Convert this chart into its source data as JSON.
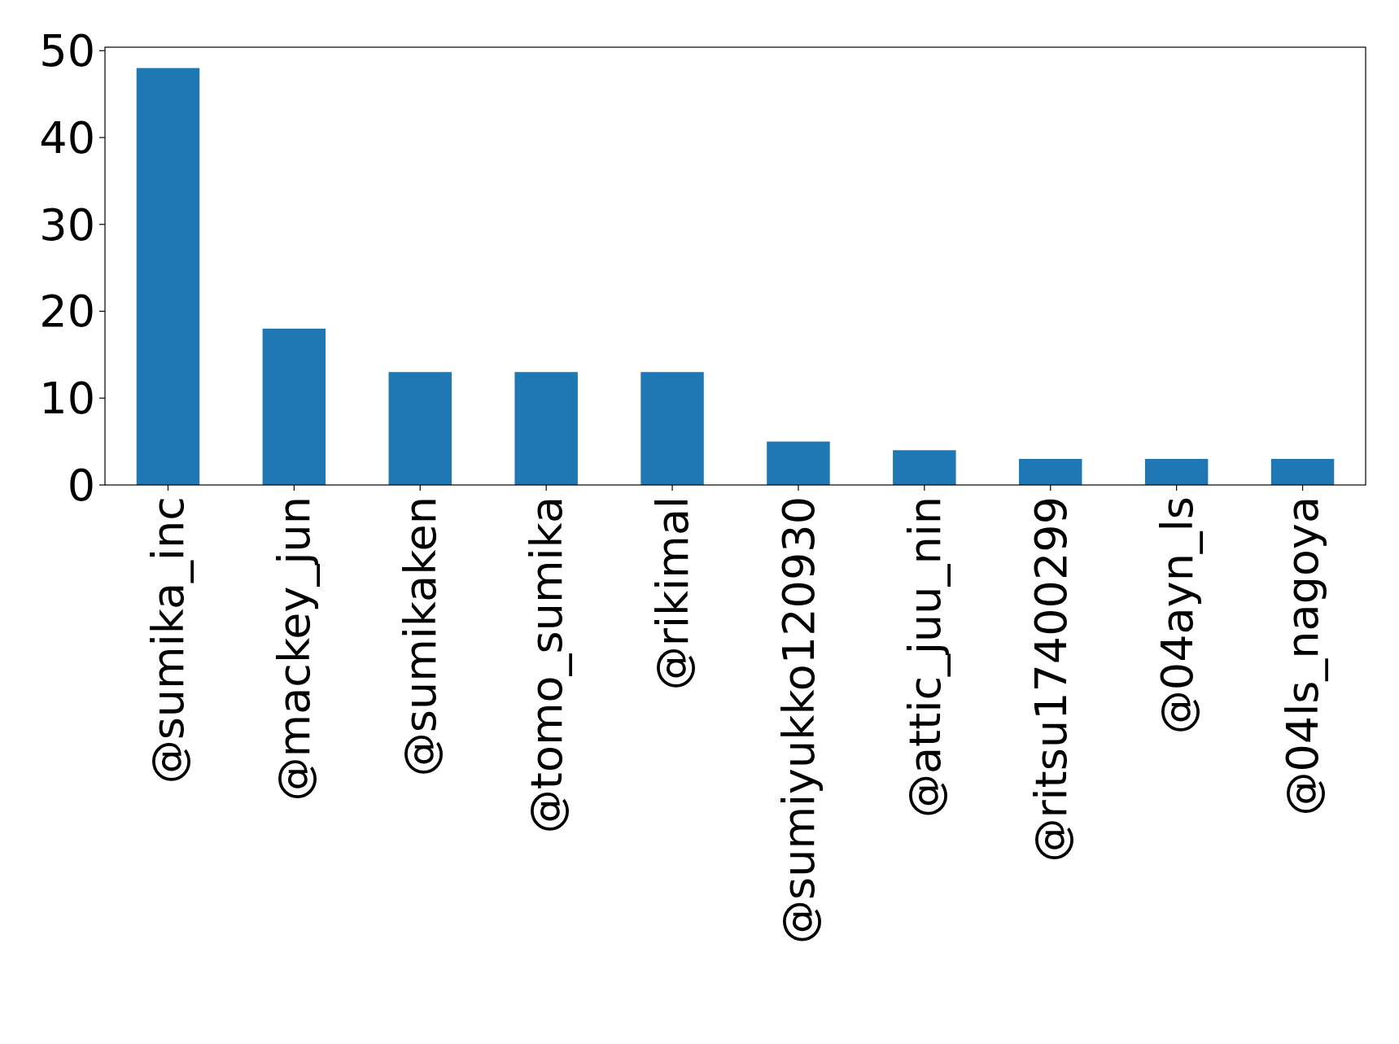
{
  "chart_data": {
    "type": "bar",
    "categories": [
      "@sumika_inc",
      "@mackey_jun",
      "@sumikaken",
      "@tomo_sumika",
      "@rikimal",
      "@sumiyukko120930",
      "@attic_juu_nin",
      "@ritsu17400299",
      "@04ayn_ls",
      "@04ls_nagoya"
    ],
    "values": [
      48,
      18,
      13,
      13,
      13,
      5,
      4,
      3,
      3,
      3
    ],
    "color": "#1f77b4",
    "ylim": [
      0,
      50.4
    ],
    "yticks": [
      0,
      10,
      20,
      30,
      40,
      50
    ]
  }
}
